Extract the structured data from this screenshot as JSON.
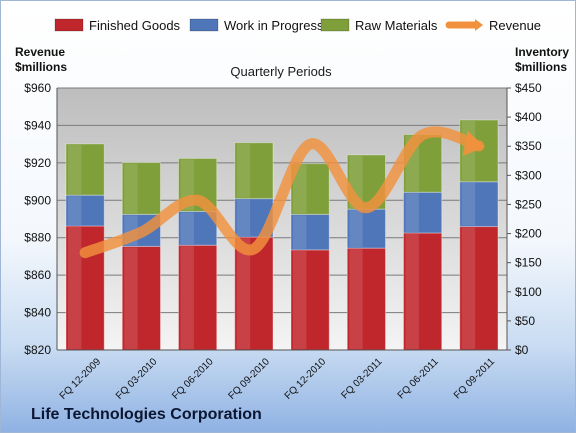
{
  "company": "Life Technologies Corporation",
  "chart_data": {
    "type": "bar",
    "subtitle": "Quarterly Periods",
    "left_axis_label": [
      "Revenue",
      "$millions"
    ],
    "right_axis_label": [
      "Inventory",
      "$millions"
    ],
    "categories": [
      "FQ 12-2009",
      "FQ 03-2010",
      "FQ 06-2010",
      "FQ 09-2010",
      "FQ 12-2010",
      "FQ 03-2011",
      "FQ 06-2011",
      "FQ 09-2011"
    ],
    "left_ylim": [
      820,
      960
    ],
    "left_ticks": [
      820,
      840,
      860,
      880,
      900,
      920,
      940,
      960
    ],
    "left_tick_labels": [
      "$820",
      "$840",
      "$860",
      "$880",
      "$900",
      "$920",
      "$940",
      "$960"
    ],
    "right_ylim": [
      0,
      450
    ],
    "right_ticks": [
      0,
      50,
      100,
      150,
      200,
      250,
      300,
      350,
      400,
      450
    ],
    "right_tick_labels": [
      "$0",
      "$50",
      "$100",
      "$150",
      "$200",
      "$250",
      "$300",
      "$350",
      "$400",
      "$450"
    ],
    "legend_position": "top",
    "series": [
      {
        "name": "Finished Goods",
        "axis": "right",
        "kind": "stacked-bar",
        "color": "#c0272d",
        "values": [
          213,
          178,
          180,
          194,
          172,
          175,
          201,
          212
        ]
      },
      {
        "name": "Work in Progress",
        "axis": "right",
        "kind": "stacked-bar",
        "color": "#4f76b9",
        "values": [
          53,
          55,
          58,
          66,
          61,
          67,
          70,
          77
        ]
      },
      {
        "name": "Raw Materials",
        "axis": "right",
        "kind": "stacked-bar",
        "color": "#7f9f3a",
        "values": [
          88,
          89,
          91,
          96,
          87,
          93,
          99,
          106
        ]
      },
      {
        "name": "Revenue",
        "axis": "left",
        "kind": "line",
        "color": "#f2913d",
        "values": [
          872,
          883,
          900,
          874,
          930,
          896,
          935,
          929
        ]
      }
    ]
  }
}
